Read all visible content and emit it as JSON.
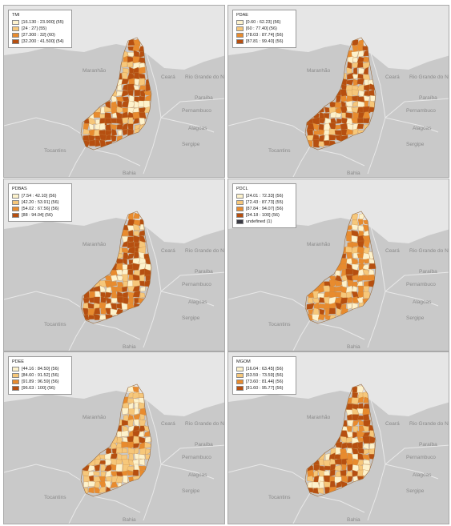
{
  "place_labels": {
    "maranhao": "Maranhão",
    "ceara": "Ceará",
    "rio_grande_do_norte": "Rio Grande do Norte",
    "paraiba": "Paraíba",
    "pernambuco": "Pernambuco",
    "alagoas": "Alagoas",
    "sergipe": "Sergipe",
    "tocantins": "Tocantins",
    "bahia": "Bahia"
  },
  "palette": [
    "#fdf2cc",
    "#f6c77a",
    "#e88b2e",
    "#b64f10"
  ],
  "undefined_color": "#3a3a44",
  "sea_color": "#e6e6e6",
  "land_color": "#c9c9c9",
  "maps": [
    {
      "title": "TMI",
      "legend": [
        {
          "label": "[16.130 : 23.900] (55)"
        },
        {
          "label": "[24 : 27] (55)"
        },
        {
          "label": "[27.300 : 32] (60)"
        },
        {
          "label": "[32.200 : 41.500] (54)"
        }
      ],
      "dominant_class": 3
    },
    {
      "title": "PDAE",
      "legend": [
        {
          "label": "[0.60 : 62.23] (56)"
        },
        {
          "label": "[60 : 77.40] (56)"
        },
        {
          "label": "[78.03 : 87.74] (56)"
        },
        {
          "label": "[87.81 : 99.40] (56)"
        }
      ],
      "dominant_class": 3
    },
    {
      "title": "PDBAS",
      "legend": [
        {
          "label": "[7.54 : 42.10] (56)"
        },
        {
          "label": "[42.20 : 53.91] (56)"
        },
        {
          "label": "[54.02 : 67.56] (56)"
        },
        {
          "label": "[88 : 94.04] (56)"
        }
      ],
      "dominant_class": 3
    },
    {
      "title": "PDCL",
      "legend": [
        {
          "label": "[24.01 : 72.33] (56)"
        },
        {
          "label": "[72.43 : 87.73] (55)"
        },
        {
          "label": "[87.84 : 94.07] (56)"
        },
        {
          "label": "[94.18 : 100] (56)"
        },
        {
          "label": "undefined (1)",
          "undefined": true
        }
      ],
      "dominant_class": 2
    },
    {
      "title": "PDEE",
      "legend": [
        {
          "label": "[44.16 : 84.50] (56)"
        },
        {
          "label": "[84.60 : 91.52] (56)"
        },
        {
          "label": "[91.89 : 96.59] (56)"
        },
        {
          "label": "[96.63 : 100] (56)"
        }
      ],
      "dominant_class": 1
    },
    {
      "title": "MGOM",
      "legend": [
        {
          "label": "[16.04 : 63.45] (56)"
        },
        {
          "label": "[63.59 : 73.59] (56)"
        },
        {
          "label": "[73.60 : 81.44] (56)"
        },
        {
          "label": "[81.60 : 95.77] (56)"
        }
      ],
      "dominant_class": 3
    }
  ]
}
